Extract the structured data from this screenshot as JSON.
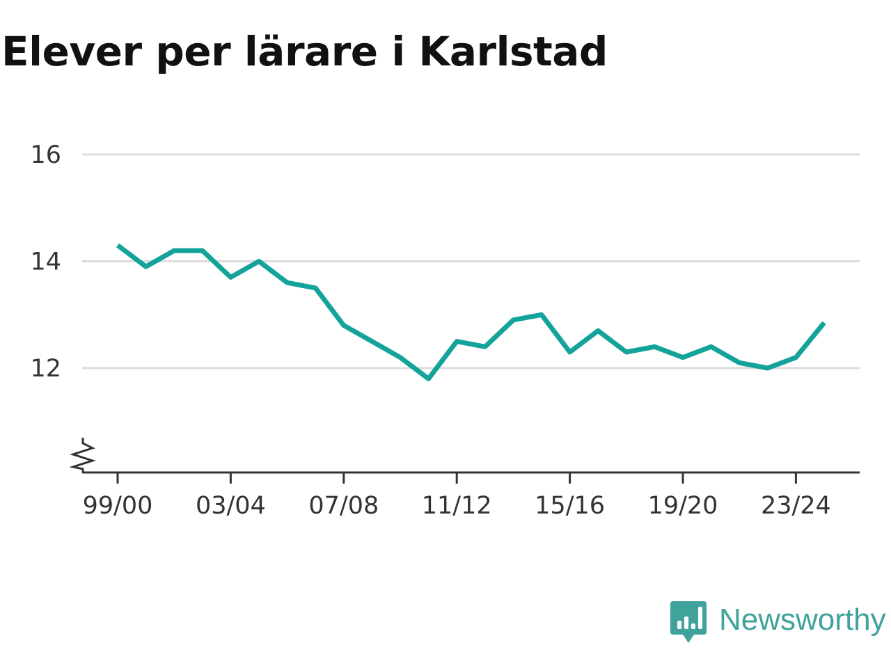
{
  "title": "Elever per lärare i Karlstad",
  "brand": {
    "name": "Newsworthy",
    "color": "#3fa39b",
    "icon": "bar-chart-speech-bubble-icon"
  },
  "colors": {
    "line": "#14a39a",
    "grid": "#dcdcdc",
    "axis": "#333333",
    "title": "#111111"
  },
  "chart_data": {
    "type": "line",
    "title": "Elever per lärare i Karlstad",
    "xlabel": "",
    "ylabel": "",
    "categories": [
      "99/00",
      "00/01",
      "01/02",
      "02/03",
      "03/04",
      "04/05",
      "05/06",
      "06/07",
      "07/08",
      "08/09",
      "09/10",
      "10/11",
      "11/12",
      "12/13",
      "13/14",
      "14/15",
      "15/16",
      "16/17",
      "17/18",
      "18/19",
      "19/20",
      "20/21",
      "21/22",
      "22/23",
      "23/24",
      "24/25"
    ],
    "x_tick_labels": [
      "99/00",
      "03/04",
      "07/08",
      "11/12",
      "15/16",
      "19/20",
      "23/24"
    ],
    "y_ticks": [
      12,
      14,
      16
    ],
    "ylim": [
      10,
      16
    ],
    "y_axis_break": true,
    "grid": "horizontal",
    "legend": "none",
    "series": [
      {
        "values": [
          14.3,
          13.9,
          14.2,
          14.2,
          13.7,
          14.0,
          13.6,
          13.5,
          12.8,
          12.5,
          12.2,
          11.8,
          12.5,
          12.4,
          12.9,
          13.0,
          12.3,
          12.7,
          12.3,
          12.4,
          12.2,
          12.4,
          12.1,
          12.0,
          12.2,
          12.85
        ]
      }
    ]
  }
}
